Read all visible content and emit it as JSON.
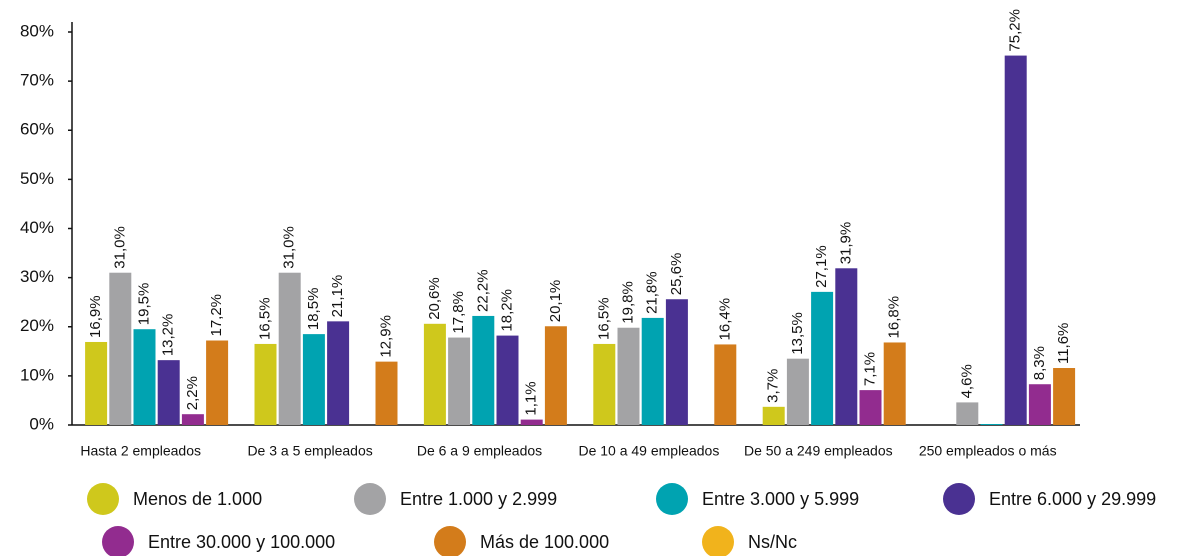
{
  "chart_data": {
    "type": "bar",
    "categories": [
      "Hasta 2 empleados",
      "De 3 a 5 empleados",
      "De 6 a 9 empleados",
      "De 10 a 49 empleados",
      "De 50 a 249 empleados",
      "250 empleados o más"
    ],
    "series": [
      {
        "name": "Menos de 1.000",
        "color": "#cfc81c",
        "values": [
          16.9,
          16.5,
          20.6,
          16.5,
          3.7,
          null
        ],
        "value_labels": [
          "16,9%",
          "16,5%",
          "20,6%",
          "16,5%",
          "3,7%",
          null
        ]
      },
      {
        "name": "Entre 1.000 y 2.999",
        "color": "#a3a3a5",
        "values": [
          31.0,
          31.0,
          17.8,
          19.8,
          13.5,
          4.6
        ],
        "value_labels": [
          "31,0%",
          "31,0%",
          "17,8%",
          "19,8%",
          "13,5%",
          "4,6%"
        ]
      },
      {
        "name": "Entre 3.000 y 5.999",
        "color": "#00a3b1",
        "values": [
          19.5,
          18.5,
          22.2,
          21.8,
          27.1,
          0.2
        ],
        "value_labels": [
          "19,5%",
          "18,5%",
          "22,2%",
          "21,8%",
          "27,1%",
          null
        ]
      },
      {
        "name": "Entre 6.000 y 29.999",
        "color": "#4a3192",
        "values": [
          13.2,
          21.1,
          18.2,
          25.6,
          31.9,
          75.2
        ],
        "value_labels": [
          "13,2%",
          "21,1%",
          "18,2%",
          "25,6%",
          "31,9%",
          "75,2%"
        ]
      },
      {
        "name": "Entre 30.000 y 100.000",
        "color": "#922c8f",
        "values": [
          2.2,
          null,
          1.1,
          null,
          7.1,
          8.3
        ],
        "value_labels": [
          "2,2%",
          null,
          "1,1%",
          null,
          "7,1%",
          "8,3%"
        ]
      },
      {
        "name": "Más de 100.000",
        "color": "#d37c1b",
        "values": [
          17.2,
          12.9,
          20.1,
          16.4,
          16.8,
          11.6
        ],
        "value_labels": [
          "17,2%",
          "12,9%",
          "20,1%",
          "16,4%",
          "16,8%",
          "11,6%"
        ]
      },
      {
        "name": "Ns/Nc",
        "color": "#f1b31c",
        "values": [
          null,
          null,
          null,
          null,
          null,
          null
        ],
        "value_labels": [
          null,
          null,
          null,
          null,
          null,
          null
        ]
      }
    ],
    "ylim": [
      0,
      80
    ],
    "yticks": [
      {
        "value": 0,
        "label": "0%"
      },
      {
        "value": 10,
        "label": "10%"
      },
      {
        "value": 20,
        "label": "20%"
      },
      {
        "value": 30,
        "label": "30%"
      },
      {
        "value": 40,
        "label": "40%"
      },
      {
        "value": 50,
        "label": "50%"
      },
      {
        "value": 60,
        "label": "60%"
      },
      {
        "value": 70,
        "label": "70%"
      },
      {
        "value": 80,
        "label": "80%"
      }
    ],
    "grid": false
  }
}
